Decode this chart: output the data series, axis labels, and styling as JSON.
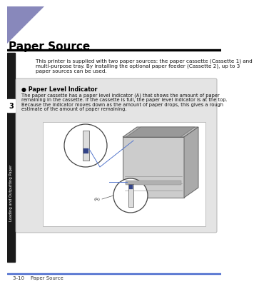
{
  "page_bg": "#ffffff",
  "header_triangle_color": "#8888bb",
  "header_bar_color": "#000000",
  "title_text": "Paper Source",
  "title_color": "#000000",
  "title_fontsize": 11,
  "side_bar_color": "#1a1a1a",
  "side_bar_label": "Loading and Outputting Paper",
  "chapter_number": "3",
  "body_text_line1": "This printer is supplied with two paper sources: the paper cassette (Cassette 1) and",
  "body_text_line2": "multi-purpose tray. By installing the optional paper feeder (Cassette 2), up to 3",
  "body_text_line3": "paper sources can be used.",
  "body_fontsize": 5.2,
  "box_bg": "#e4e4e4",
  "box_border": "#aaaaaa",
  "section_bullet": "●",
  "section_title": " Paper Level Indicator",
  "section_title_fontsize": 5.8,
  "section_body_line1": "The paper cassette has a paper level indicator (A) that shows the amount of paper",
  "section_body_line2": "remaining in the cassette. If the cassette is full, the paper level indicator is at the top.",
  "section_body_line3": "Because the indicator moves down as the amount of paper drops, this gives a rough",
  "section_body_line4": "estimate of the amount of paper remaining.",
  "section_body_fontsize": 4.8,
  "footer_line_color": "#4466cc",
  "footer_text": "3-10    Paper Source",
  "footer_fontsize": 5.0,
  "arrow_color": "#5577cc",
  "printer_face_color": "#cccccc",
  "printer_top_color": "#b8b8b8",
  "printer_right_color": "#aaaaaa",
  "printer_edge_color": "#666666"
}
